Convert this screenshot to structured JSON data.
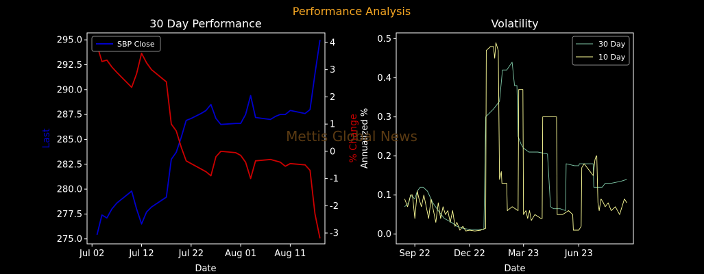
{
  "figure": {
    "suptitle": "Performance Analysis",
    "suptitle_color": "#f5a623",
    "watermark": "Mettis Global News",
    "watermark_color": "#5a3a12"
  },
  "chart_data": [
    {
      "type": "line",
      "title": "30 Day Performance",
      "xlabel": "Date",
      "ylabel": "Last",
      "ylabel_color": "#0000cc",
      "y2label": "% Change",
      "y2label_color": "#cc0000",
      "x_tick_labels": [
        "Jul 02",
        "Jul 12",
        "Jul 22",
        "Aug 01",
        "Aug 11"
      ],
      "x_tick_dates": [
        "2023-07-02",
        "2023-07-12",
        "2023-07-22",
        "2023-08-01",
        "2023-08-11"
      ],
      "xlim": [
        "2023-07-01",
        "2023-08-18"
      ],
      "ylim": [
        274.5,
        295.7
      ],
      "y_ticks": [
        "275.0",
        "277.5",
        "280.0",
        "282.5",
        "285.0",
        "287.5",
        "290.0",
        "292.5",
        "295.0"
      ],
      "y2lim": [
        -3.4,
        4.35
      ],
      "y2_ticks": [
        "-3",
        "-2",
        "-1",
        "0",
        "1",
        "2",
        "3",
        "4"
      ],
      "legend": {
        "entries": [
          "SBP Close"
        ],
        "position": "upper-left"
      },
      "series": [
        {
          "name": "SBP Close",
          "axis": "left",
          "color": "#0000cc",
          "dates": [
            "2023-07-03",
            "2023-07-04",
            "2023-07-05",
            "2023-07-06",
            "2023-07-07",
            "2023-07-10",
            "2023-07-11",
            "2023-07-12",
            "2023-07-13",
            "2023-07-14",
            "2023-07-17",
            "2023-07-18",
            "2023-07-19",
            "2023-07-20",
            "2023-07-21",
            "2023-07-22",
            "2023-07-24",
            "2023-07-25",
            "2023-07-26",
            "2023-07-27",
            "2023-07-28",
            "2023-07-31",
            "2023-08-01",
            "2023-08-02",
            "2023-08-03",
            "2023-08-04",
            "2023-08-07",
            "2023-08-08",
            "2023-08-09",
            "2023-08-10",
            "2023-08-11",
            "2023-08-14",
            "2023-08-15",
            "2023-08-16",
            "2023-08-17"
          ],
          "values": [
            275.4,
            277.4,
            277.1,
            278.0,
            278.6,
            279.8,
            278.0,
            276.5,
            277.7,
            278.2,
            279.2,
            283.0,
            283.7,
            285.2,
            286.9,
            287.1,
            287.6,
            287.9,
            288.5,
            287.1,
            286.5,
            286.6,
            286.6,
            287.5,
            289.4,
            287.2,
            287.0,
            287.3,
            287.5,
            287.5,
            287.9,
            287.6,
            288.0,
            291.6,
            295.0
          ]
        },
        {
          "name": "% Change",
          "axis": "right",
          "color": "#cc0000",
          "dates": [
            "2023-07-03",
            "2023-07-04",
            "2023-07-05",
            "2023-07-06",
            "2023-07-07",
            "2023-07-10",
            "2023-07-11",
            "2023-07-12",
            "2023-07-13",
            "2023-07-14",
            "2023-07-17",
            "2023-07-18",
            "2023-07-19",
            "2023-07-20",
            "2023-07-21",
            "2023-07-22",
            "2023-07-24",
            "2023-07-25",
            "2023-07-26",
            "2023-07-27",
            "2023-07-28",
            "2023-07-31",
            "2023-08-01",
            "2023-08-02",
            "2023-08-03",
            "2023-08-04",
            "2023-08-07",
            "2023-08-08",
            "2023-08-09",
            "2023-08-10",
            "2023-08-11",
            "2023-08-14",
            "2023-08-15",
            "2023-08-16",
            "2023-08-17"
          ],
          "values": [
            3.9,
            3.3,
            3.35,
            3.1,
            2.9,
            2.35,
            2.85,
            3.6,
            3.25,
            3.0,
            2.55,
            1.0,
            0.75,
            0.15,
            -0.35,
            -0.45,
            -0.65,
            -0.75,
            -0.9,
            -0.2,
            0.0,
            -0.05,
            -0.15,
            -0.4,
            -1.0,
            -0.35,
            -0.3,
            -0.35,
            -0.4,
            -0.55,
            -0.45,
            -0.5,
            -0.7,
            -2.3,
            -3.2
          ]
        }
      ]
    },
    {
      "type": "line",
      "title": "Volatility",
      "xlabel": "Date",
      "ylabel": "Annualized %",
      "x_tick_labels": [
        "Sep 22",
        "Dec 22",
        "Mar 23",
        "Jun 23"
      ],
      "x_tick_dates": [
        "2022-09-01",
        "2022-12-01",
        "2023-03-01",
        "2023-06-01"
      ],
      "xlim": [
        "2022-08-01",
        "2023-08-31"
      ],
      "ylim": [
        -0.025,
        0.515
      ],
      "y_ticks": [
        "0.0",
        "0.1",
        "0.2",
        "0.3",
        "0.4",
        "0.5"
      ],
      "legend": {
        "entries": [
          "30 Day",
          "10 Day"
        ],
        "position": "upper-right"
      },
      "series": [
        {
          "name": "30 Day",
          "color": "#7fc9a8",
          "dates": [
            "2022-08-15",
            "2022-08-22",
            "2022-08-25",
            "2022-09-01",
            "2022-09-05",
            "2022-09-10",
            "2022-09-15",
            "2022-09-22",
            "2022-10-01",
            "2022-10-10",
            "2022-10-20",
            "2022-11-01",
            "2022-11-10",
            "2022-11-20",
            "2022-12-01",
            "2022-12-15",
            "2022-12-25",
            "2022-12-28",
            "2023-01-10",
            "2023-01-20",
            "2023-01-25",
            "2023-02-01",
            "2023-02-10",
            "2023-02-14",
            "2023-02-18",
            "2023-02-20",
            "2023-02-25",
            "2023-03-01",
            "2023-03-10",
            "2023-03-25",
            "2023-04-10",
            "2023-04-15",
            "2023-04-20",
            "2023-05-01",
            "2023-05-10",
            "2023-05-11",
            "2023-05-25",
            "2023-06-01",
            "2023-06-02",
            "2023-06-15",
            "2023-06-25",
            "2023-06-26",
            "2023-07-10",
            "2023-07-15",
            "2023-07-25",
            "2023-08-10",
            "2023-08-20"
          ],
          "values": [
            0.07,
            0.08,
            0.1,
            0.09,
            0.11,
            0.12,
            0.12,
            0.11,
            0.08,
            0.06,
            0.04,
            0.03,
            0.02,
            0.015,
            0.012,
            0.012,
            0.012,
            0.3,
            0.32,
            0.34,
            0.42,
            0.42,
            0.44,
            0.38,
            0.38,
            0.25,
            0.23,
            0.22,
            0.21,
            0.21,
            0.205,
            0.07,
            0.065,
            0.065,
            0.06,
            0.18,
            0.175,
            0.175,
            0.18,
            0.18,
            0.18,
            0.12,
            0.12,
            0.13,
            0.13,
            0.135,
            0.14
          ]
        },
        {
          "name": "10 Day",
          "color": "#ffff99",
          "dates": [
            "2022-08-15",
            "2022-08-20",
            "2022-08-25",
            "2022-08-28",
            "2022-09-01",
            "2022-09-05",
            "2022-09-08",
            "2022-09-12",
            "2022-09-16",
            "2022-09-20",
            "2022-09-24",
            "2022-09-28",
            "2022-10-02",
            "2022-10-06",
            "2022-10-10",
            "2022-10-14",
            "2022-10-18",
            "2022-10-22",
            "2022-10-26",
            "2022-10-30",
            "2022-11-03",
            "2022-11-07",
            "2022-11-10",
            "2022-11-15",
            "2022-11-20",
            "2022-11-25",
            "2022-12-01",
            "2022-12-10",
            "2022-12-20",
            "2022-12-28",
            "2022-12-29",
            "2023-01-05",
            "2023-01-10",
            "2023-01-12",
            "2023-01-14",
            "2023-01-18",
            "2023-01-20",
            "2023-01-23",
            "2023-01-24",
            "2023-02-01",
            "2023-02-02",
            "2023-02-10",
            "2023-02-20",
            "2023-02-21",
            "2023-02-24",
            "2023-02-28",
            "2023-03-01",
            "2023-03-05",
            "2023-03-08",
            "2023-03-11",
            "2023-03-14",
            "2023-03-20",
            "2023-03-30",
            "2023-04-01",
            "2023-04-02",
            "2023-04-10",
            "2023-04-18",
            "2023-04-25",
            "2023-04-26",
            "2023-05-05",
            "2023-05-15",
            "2023-05-22",
            "2023-05-23",
            "2023-06-01",
            "2023-06-05",
            "2023-06-06",
            "2023-06-10",
            "2023-06-15",
            "2023-06-25",
            "2023-06-28",
            "2023-06-30",
            "2023-07-01",
            "2023-07-03",
            "2023-07-05",
            "2023-07-08",
            "2023-07-12",
            "2023-07-15",
            "2023-07-20",
            "2023-07-25",
            "2023-08-01",
            "2023-08-08",
            "2023-08-12",
            "2023-08-16",
            "2023-08-20"
          ],
          "values": [
            0.09,
            0.07,
            0.1,
            0.1,
            0.04,
            0.11,
            0.09,
            0.07,
            0.1,
            0.07,
            0.04,
            0.09,
            0.06,
            0.03,
            0.08,
            0.04,
            0.07,
            0.05,
            0.06,
            0.03,
            0.06,
            0.02,
            0.03,
            0.01,
            0.02,
            0.008,
            0.01,
            0.008,
            0.01,
            0.015,
            0.47,
            0.48,
            0.48,
            0.45,
            0.49,
            0.47,
            0.14,
            0.16,
            0.13,
            0.13,
            0.06,
            0.07,
            0.06,
            0.37,
            0.37,
            0.37,
            0.05,
            0.06,
            0.04,
            0.06,
            0.035,
            0.05,
            0.04,
            0.04,
            0.3,
            0.3,
            0.3,
            0.3,
            0.05,
            0.05,
            0.06,
            0.05,
            0.01,
            0.01,
            0.02,
            0.17,
            0.18,
            0.17,
            0.15,
            0.19,
            0.2,
            0.2,
            0.08,
            0.06,
            0.09,
            0.08,
            0.07,
            0.08,
            0.06,
            0.07,
            0.05,
            0.07,
            0.09,
            0.08
          ]
        }
      ]
    }
  ]
}
